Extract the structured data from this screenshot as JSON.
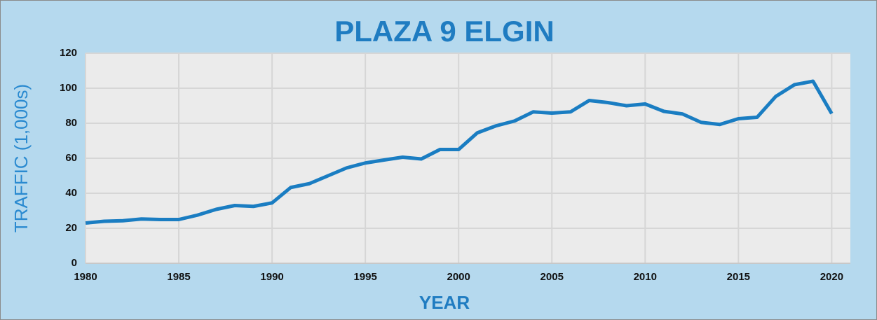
{
  "chart_data": {
    "type": "line",
    "title": "PLAZA 9 ELGIN",
    "x_label": "YEAR",
    "y_label": "TRAFFIC (1,000s)",
    "x": [
      1980,
      1981,
      1982,
      1983,
      1984,
      1985,
      1986,
      1987,
      1988,
      1989,
      1990,
      1991,
      1992,
      1993,
      1994,
      1995,
      1996,
      1997,
      1998,
      1999,
      2000,
      2001,
      2002,
      2003,
      2004,
      2005,
      2006,
      2007,
      2008,
      2009,
      2010,
      2011,
      2012,
      2013,
      2014,
      2015,
      2016,
      2017,
      2018,
      2019,
      2020
    ],
    "series": [
      {
        "name": "Traffic",
        "color": "#1a7dc2",
        "values": [
          23,
          24,
          24.3,
          25.3,
          25,
          25,
          27.5,
          30.8,
          33,
          32.5,
          34.5,
          43.3,
          45.5,
          50,
          54.5,
          57.3,
          59,
          60.6,
          59.6,
          65,
          65,
          74.5,
          78.5,
          81.3,
          86.5,
          85.8,
          86.5,
          93,
          91.8,
          90,
          91,
          86.8,
          85.3,
          80.5,
          79.3,
          82.6,
          83.4,
          95.3,
          102,
          104,
          85.5
        ]
      }
    ],
    "xlim": [
      1980,
      2021
    ],
    "xticks": [
      1980,
      1985,
      1990,
      1995,
      2000,
      2005,
      2010,
      2015,
      2020
    ],
    "ylim": [
      0,
      120
    ],
    "yticks": [
      0,
      20,
      40,
      60,
      80,
      100,
      120
    ],
    "grid": true
  }
}
